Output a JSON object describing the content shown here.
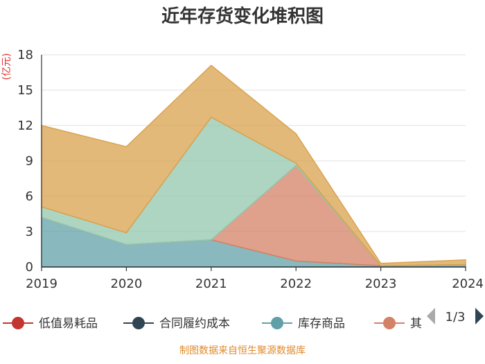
{
  "chart_data": {
    "type": "area",
    "stacked": true,
    "title": "近年存货变化堆积图",
    "ylabel": "(亿元)",
    "ylim": [
      0,
      18
    ],
    "yticks": [
      0,
      3,
      6,
      9,
      12,
      15,
      18
    ],
    "categories": [
      "2019",
      "2020",
      "2021",
      "2022",
      "2023",
      "2024"
    ],
    "series": [
      {
        "name": "低值易耗品",
        "color": "#c23531",
        "values": [
          0,
          0,
          0,
          0,
          0,
          0
        ]
      },
      {
        "name": "合同履约成本",
        "color": "#2f4554",
        "values": [
          0,
          0,
          0,
          0,
          0,
          0
        ]
      },
      {
        "name": "库存商品",
        "color": "#61a0a8",
        "values": [
          4.2,
          1.9,
          2.3,
          0.5,
          0.1,
          0.2
        ]
      },
      {
        "name": "其他",
        "color": "#d48265",
        "values": [
          0,
          0,
          0,
          8.1,
          0,
          0
        ]
      },
      {
        "name": "",
        "color": "#91c7ae",
        "values": [
          0.9,
          1.0,
          10.4,
          0.2,
          0,
          0
        ]
      },
      {
        "name": "",
        "color": "#d9a24d",
        "values": [
          6.9,
          7.3,
          4.4,
          2.5,
          0.2,
          0.4
        ]
      }
    ],
    "legend_visible": [
      {
        "name": "低值易耗品",
        "color": "#c23531"
      },
      {
        "name": "合同履约成本",
        "color": "#2f4554"
      },
      {
        "name": "库存商品",
        "color": "#61a0a8"
      },
      {
        "name": "其",
        "color": "#d48265"
      }
    ],
    "legend_page": "1/3",
    "legend_placement": "bottom",
    "grid": true
  },
  "source": "制图数据来自恒生聚源数据库"
}
